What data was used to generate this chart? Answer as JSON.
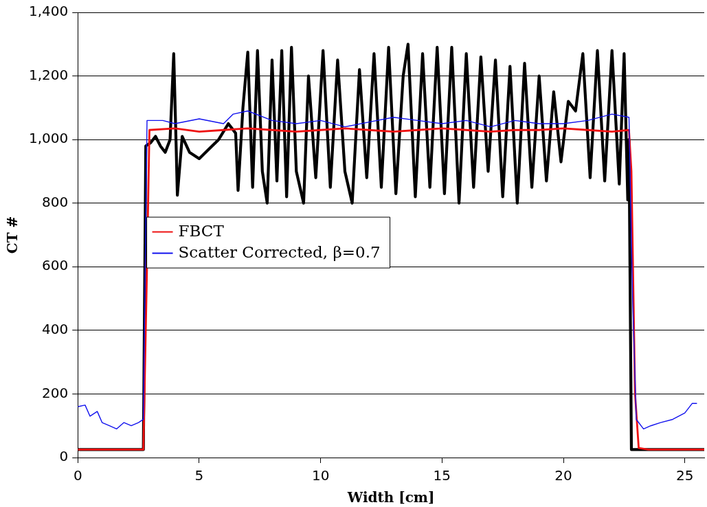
{
  "chart_data": {
    "type": "line",
    "xlabel": "Width [cm]",
    "ylabel": "CT #",
    "xlim": [
      0,
      25.8
    ],
    "xticks": [
      0,
      5,
      10,
      15,
      20,
      25
    ],
    "ylim": [
      0,
      1400
    ],
    "yticks": [
      0,
      200,
      400,
      600,
      800,
      {
        "value": 1000,
        "label": "1,000"
      },
      {
        "value": 1200,
        "label": "1,200"
      },
      {
        "value": 1400,
        "label": "1,400"
      }
    ],
    "grid": "y",
    "legend": "center left",
    "marker": "none",
    "line_style": "solid",
    "series": [
      {
        "color": "#000000",
        "x": [
          0,
          2.7,
          2.8,
          3.0,
          3.2,
          3.4,
          3.6,
          3.8,
          3.95,
          4.05,
          4.1,
          4.3,
          4.6,
          5.0,
          5.4,
          5.8,
          6.2,
          6.5,
          6.6,
          6.8,
          7.0,
          7.2,
          7.4,
          7.6,
          7.8,
          8.0,
          8.2,
          8.4,
          8.6,
          8.8,
          9.0,
          9.3,
          9.5,
          9.8,
          10.1,
          10.4,
          10.7,
          11.0,
          11.3,
          11.6,
          11.9,
          12.2,
          12.5,
          12.8,
          13.1,
          13.4,
          13.6,
          13.9,
          14.2,
          14.5,
          14.8,
          15.1,
          15.4,
          15.7,
          16.0,
          16.3,
          16.6,
          16.9,
          17.2,
          17.5,
          17.8,
          18.1,
          18.4,
          18.7,
          19.0,
          19.3,
          19.6,
          19.9,
          20.2,
          20.5,
          20.8,
          21.1,
          21.4,
          21.7,
          22.0,
          22.3,
          22.5,
          22.65,
          22.7,
          22.8,
          25.8
        ],
        "values": [
          25,
          25,
          980,
          990,
          1010,
          980,
          960,
          1000,
          1270,
          980,
          825,
          1010,
          960,
          940,
          970,
          1000,
          1050,
          1020,
          840,
          1100,
          1275,
          850,
          1280,
          900,
          800,
          1250,
          870,
          1280,
          820,
          1290,
          900,
          800,
          1200,
          880,
          1280,
          850,
          1250,
          900,
          800,
          1220,
          880,
          1270,
          850,
          1290,
          830,
          1200,
          1300,
          820,
          1270,
          850,
          1290,
          830,
          1290,
          800,
          1270,
          850,
          1260,
          900,
          1250,
          820,
          1230,
          800,
          1240,
          850,
          1200,
          870,
          1150,
          930,
          1120,
          1090,
          1270,
          880,
          1280,
          870,
          1280,
          860,
          1270,
          810,
          1000,
          25,
          25
        ]
      },
      {
        "name": "FBCT",
        "color": "#ee1111",
        "x": [
          0,
          2.7,
          2.85,
          2.95,
          4,
          5,
          6,
          7,
          8,
          9,
          10,
          11,
          12,
          13,
          14,
          15,
          16,
          17,
          18,
          19,
          20,
          21,
          22,
          22.7,
          22.8,
          22.95,
          23.1,
          23.5,
          25.8
        ],
        "values": [
          25,
          25,
          600,
          1030,
          1035,
          1025,
          1030,
          1035,
          1030,
          1025,
          1030,
          1035,
          1030,
          1025,
          1030,
          1035,
          1030,
          1025,
          1030,
          1030,
          1035,
          1030,
          1025,
          1030,
          900,
          200,
          30,
          25,
          25
        ]
      },
      {
        "name": "Scatter Corrected, β=0.7",
        "color": "#1111ee",
        "x": [
          0,
          0.3,
          0.5,
          0.8,
          1.0,
          1.3,
          1.6,
          1.9,
          2.2,
          2.5,
          2.7,
          2.85,
          3.5,
          4.0,
          5,
          6,
          6.4,
          7,
          8,
          9,
          10,
          11,
          12,
          13,
          14,
          15,
          16,
          17,
          18,
          19,
          20,
          21,
          22,
          22.7,
          22.85,
          23.0,
          23.3,
          23.6,
          24,
          24.5,
          25,
          25.3,
          25.5
        ],
        "values": [
          160,
          165,
          130,
          145,
          110,
          100,
          90,
          110,
          100,
          110,
          120,
          1060,
          1060,
          1050,
          1065,
          1050,
          1080,
          1090,
          1060,
          1050,
          1060,
          1040,
          1055,
          1070,
          1060,
          1050,
          1060,
          1040,
          1060,
          1050,
          1050,
          1060,
          1080,
          1070,
          500,
          120,
          90,
          100,
          110,
          120,
          140,
          170,
          170
        ]
      }
    ]
  }
}
